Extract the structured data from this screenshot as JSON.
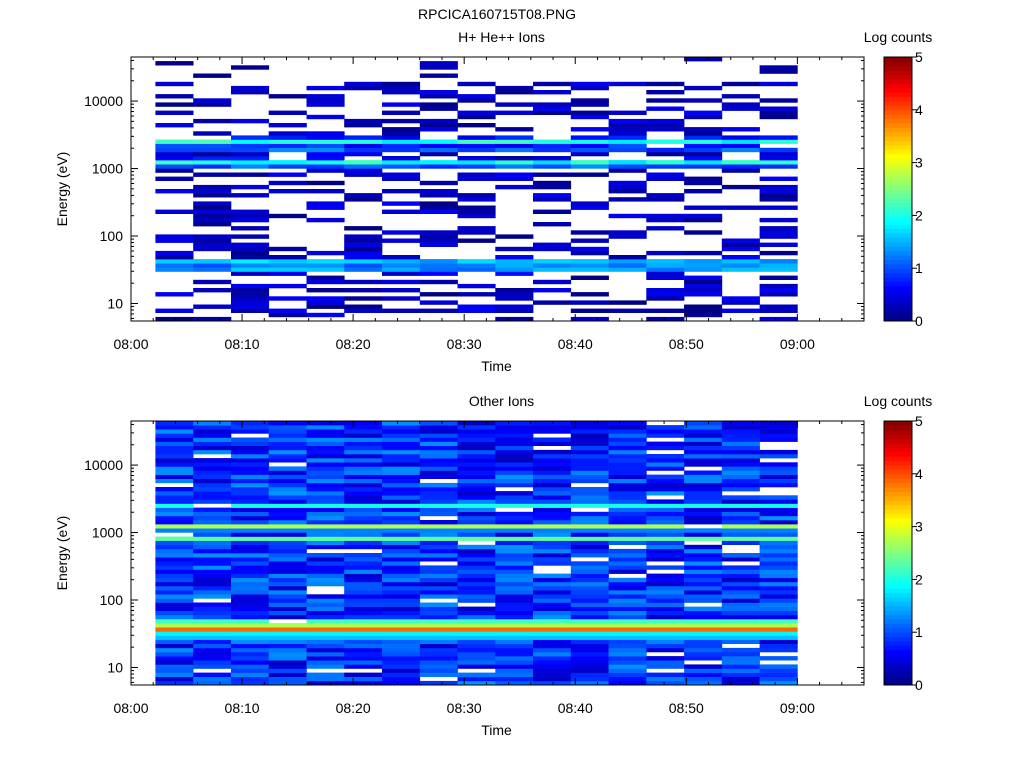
{
  "figure_title": "RPCICA160715T08.PNG",
  "chart_data": [
    {
      "type": "heatmap",
      "title": "H+ He++ Ions",
      "xlabel": "Time",
      "ylabel": "Energy (eV)",
      "x_ticks": [
        "08:00",
        "08:10",
        "08:20",
        "08:30",
        "08:40",
        "08:50",
        "09:00"
      ],
      "x_range": [
        "08:00",
        "09:06"
      ],
      "y_scale": "log",
      "y_range": [
        5.5,
        45000
      ],
      "y_ticks": [
        "10",
        "100",
        "1000",
        "10000"
      ],
      "colorbar": {
        "label": "Log counts",
        "range": [
          0,
          5
        ],
        "ticks": [
          "0",
          "1",
          "2",
          "3",
          "4",
          "5"
        ]
      },
      "time_bins_minutes": [
        2.2,
        5.6,
        9.0,
        12.4,
        15.8,
        19.2,
        22.6,
        26.0,
        29.4,
        32.8,
        36.2,
        39.6,
        43.0,
        46.4,
        49.8,
        53.2,
        56.6,
        60.0
      ],
      "bands": [
        {
          "energy_eV": 2500,
          "log_counts": 1.7
        },
        {
          "energy_eV": 2000,
          "log_counts": 0.9
        },
        {
          "energy_eV": 1200,
          "log_counts": 1.8
        },
        {
          "energy_eV": 40,
          "log_counts": 1.6
        },
        {
          "energy_eV": 33,
          "log_counts": 1.2
        }
      ]
    },
    {
      "type": "heatmap",
      "title": "Other Ions",
      "xlabel": "Time",
      "ylabel": "Energy (eV)",
      "x_ticks": [
        "08:00",
        "08:10",
        "08:20",
        "08:30",
        "08:40",
        "08:50",
        "09:00"
      ],
      "x_range": [
        "08:00",
        "09:06"
      ],
      "y_scale": "log",
      "y_range": [
        5.5,
        45000
      ],
      "y_ticks": [
        "10",
        "100",
        "1000",
        "10000"
      ],
      "colorbar": {
        "label": "Log counts",
        "range": [
          0,
          5
        ],
        "ticks": [
          "0",
          "1",
          "2",
          "3",
          "4",
          "5"
        ]
      },
      "time_bins_minutes": [
        2.2,
        5.6,
        9.0,
        12.4,
        15.8,
        19.2,
        22.6,
        26.0,
        29.4,
        32.8,
        36.2,
        39.6,
        43.0,
        46.4,
        49.8,
        53.2,
        56.6,
        60.0
      ],
      "bands": [
        {
          "energy_eV": 2500,
          "log_counts": 2.0
        },
        {
          "energy_eV": 1200,
          "log_counts": 3.0
        },
        {
          "energy_eV": 800,
          "log_counts": 2.4
        },
        {
          "energy_eV": 45,
          "log_counts": 3.6
        },
        {
          "energy_eV": 38,
          "log_counts": 4.2
        },
        {
          "energy_eV": 30,
          "log_counts": 2.5
        }
      ]
    }
  ]
}
